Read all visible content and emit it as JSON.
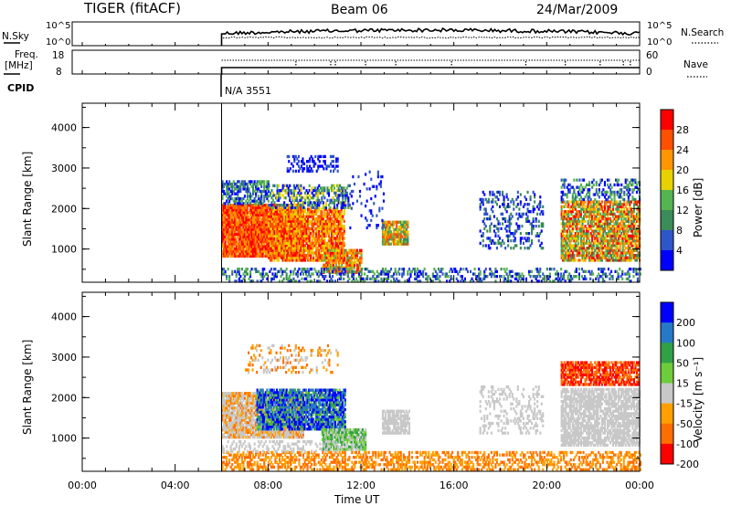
{
  "header": {
    "radar": "TIGER (fitACF)",
    "beam": "Beam 06",
    "date": "24/Mar/2009"
  },
  "strips": {
    "nsky_label": "N.Sky",
    "nsearch_label": "N.Search",
    "freq_label_1": "Freq.",
    "freq_label_2": "[MHz]",
    "nave_label": "Nave",
    "cpid_label": "CPID",
    "cpid_value": "N/A 3551",
    "noise_ticks_left": [
      "10^5",
      "10^0"
    ],
    "noise_ticks_right": [
      "10^5",
      "10^0"
    ],
    "freq_ticks_left": [
      "18",
      "8"
    ],
    "nave_ticks_right": [
      "60",
      "0"
    ]
  },
  "colors": {
    "power_scale": [
      "#0000ff",
      "#2f55c8",
      "#3c8c5a",
      "#55b450",
      "#e6d200",
      "#ff9600",
      "#ff5000",
      "#ff0000"
    ],
    "velocity_scale": [
      "#0000ff",
      "#2878c8",
      "#32a046",
      "#6ecc3c",
      "#c8c8c8",
      "#ffa000",
      "#ff6e00",
      "#ff0000"
    ]
  },
  "chart_data": [
    {
      "type": "heatmap",
      "name": "power",
      "ylabel": "Slant Range [km]",
      "y_ticks": [
        1000,
        2000,
        3000,
        4000
      ],
      "ylim": [
        180,
        4600
      ],
      "xlabel": "Time UT",
      "x_ticks": [
        "00:00",
        "04:00",
        "08:00",
        "12:00",
        "16:00",
        "20:00",
        "00:00"
      ],
      "xlim_hours": [
        0,
        24
      ],
      "colorbar": {
        "label": "Power [dB]",
        "ticks": [
          "28",
          "24",
          "20",
          "16",
          "12",
          "8",
          "4"
        ],
        "range": [
          0,
          32
        ]
      },
      "data_start_hour": 6.0
    },
    {
      "type": "heatmap",
      "name": "velocity",
      "ylabel": "Slant Range [km]",
      "y_ticks": [
        1000,
        2000,
        3000,
        4000
      ],
      "ylim": [
        180,
        4600
      ],
      "xlabel": "Time UT",
      "x_ticks": [
        "00:00",
        "04:00",
        "08:00",
        "12:00",
        "16:00",
        "20:00",
        "00:00"
      ],
      "xlim_hours": [
        0,
        24
      ],
      "colorbar": {
        "label": "Velocity [m s⁻¹]",
        "ticks": [
          "200",
          "100",
          "50",
          "15",
          "-15",
          "-50",
          "-100",
          "-200"
        ],
        "range": [
          -250,
          250
        ]
      },
      "data_start_hour": 6.0
    }
  ]
}
